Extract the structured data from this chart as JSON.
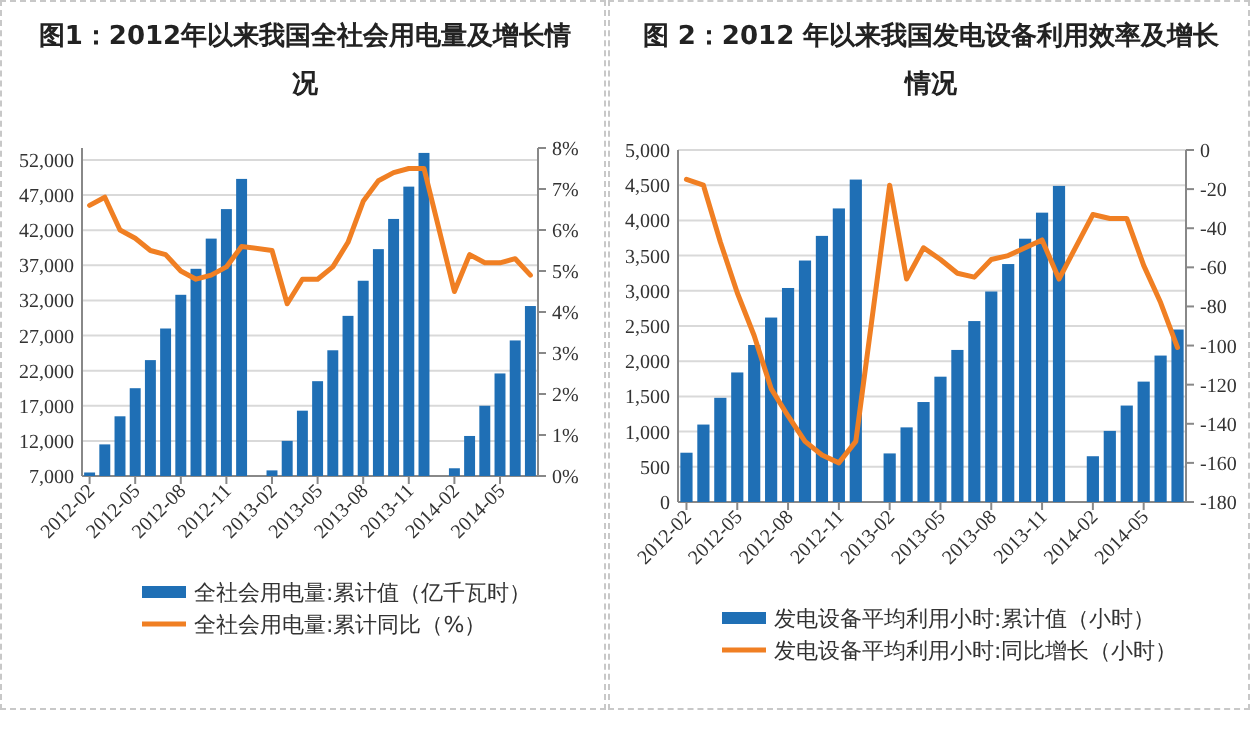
{
  "chart_data": [
    {
      "type": "bar",
      "title": "图1：2012年以来我国全社会用电量及增长情况",
      "categories": [
        "2012-02",
        null,
        null,
        "2012-05",
        null,
        null,
        "2012-08",
        null,
        null,
        "2012-11",
        null,
        null,
        "2013-02",
        null,
        null,
        "2013-05",
        null,
        null,
        "2013-08",
        null,
        null,
        "2013-11",
        null,
        null,
        "2014-02",
        null,
        null,
        "2014-05",
        null,
        null
      ],
      "series": [
        {
          "name": "全社会用电量:累计值（亿千瓦时）",
          "color": "#1f6fb5",
          "values": [
            7500,
            11500,
            15500,
            19500,
            23500,
            28000,
            32800,
            36500,
            40800,
            45000,
            49300,
            null,
            7800,
            12000,
            16300,
            20500,
            24900,
            29800,
            34800,
            39300,
            43600,
            48200,
            53000,
            null,
            8100,
            12700,
            17000,
            21600,
            26300,
            31200
          ]
        },
        {
          "name": "全社会用电量:累计同比（%）",
          "type": "line",
          "axis": "y2",
          "color": "#f07f23",
          "values": [
            6.6,
            6.8,
            6.0,
            5.8,
            5.5,
            5.4,
            5.0,
            4.8,
            4.9,
            5.1,
            5.6,
            null,
            5.5,
            4.2,
            4.8,
            4.8,
            5.1,
            5.7,
            6.7,
            7.2,
            7.4,
            7.5,
            7.5,
            null,
            4.5,
            5.4,
            5.2,
            5.2,
            5.3,
            4.9
          ]
        }
      ],
      "ylim": [
        7000,
        53700
      ],
      "yticks": [
        {
          "value": 7000,
          "label": "7,000"
        },
        {
          "value": 12000,
          "label": "12,000"
        },
        {
          "value": 17000,
          "label": "17,000"
        },
        {
          "value": 22000,
          "label": "22,000"
        },
        {
          "value": 27000,
          "label": "27,000"
        },
        {
          "value": 32000,
          "label": "32,000"
        },
        {
          "value": 37000,
          "label": "37,000"
        },
        {
          "value": 42000,
          "label": "42,000"
        },
        {
          "value": 47000,
          "label": "47,000"
        },
        {
          "value": 52000,
          "label": "52,000"
        }
      ],
      "y2lim": [
        0,
        8
      ],
      "y2ticks": [
        {
          "value": 0,
          "label": "0%"
        },
        {
          "value": 1,
          "label": "1%"
        },
        {
          "value": 2,
          "label": "2%"
        },
        {
          "value": 3,
          "label": "3%"
        },
        {
          "value": 4,
          "label": "4%"
        },
        {
          "value": 5,
          "label": "5%"
        },
        {
          "value": 6,
          "label": "6%"
        },
        {
          "value": 7,
          "label": "7%"
        },
        {
          "value": 8,
          "label": "8%"
        }
      ],
      "grid": "y",
      "legend": "bottom"
    },
    {
      "type": "bar",
      "title": "图 2：2012 年以来我国发电设备利用效率及增长情况",
      "categories": [
        "2012-02",
        null,
        null,
        "2012-05",
        null,
        null,
        "2012-08",
        null,
        null,
        "2012-11",
        null,
        null,
        "2013-02",
        null,
        null,
        "2013-05",
        null,
        null,
        "2013-08",
        null,
        null,
        "2013-11",
        null,
        null,
        "2014-02",
        null,
        null,
        "2014-05",
        null,
        null
      ],
      "series": [
        {
          "name": "发电设备平均利用小时:累计值（小时）",
          "color": "#1f6fb5",
          "values": [
            700,
            1100,
            1480,
            1840,
            2230,
            2620,
            3040,
            3430,
            3780,
            4170,
            4580,
            null,
            690,
            1060,
            1420,
            1780,
            2160,
            2570,
            2990,
            3380,
            3740,
            4110,
            4490,
            null,
            650,
            1010,
            1370,
            1710,
            2080,
            2450
          ]
        },
        {
          "name": "发电设备平均利用小时:同比增长（小时）",
          "type": "line",
          "axis": "y2",
          "color": "#f07f23",
          "values": [
            -15,
            -18,
            -47,
            -73,
            -95,
            -122,
            -136,
            -149,
            -156,
            -160,
            -149,
            null,
            -18,
            -66,
            -50,
            -56,
            -63,
            -65,
            -56,
            -54,
            -50,
            -46,
            -66,
            null,
            -33,
            -35,
            -35,
            -59,
            -78,
            -101
          ]
        }
      ],
      "ylim": [
        0,
        5000
      ],
      "yticks": [
        0,
        {
          "value": 500,
          "label": "500"
        },
        {
          "value": 1000,
          "label": "1,000"
        },
        {
          "value": 1500,
          "label": "1,500"
        },
        {
          "value": 2000,
          "label": "2,000"
        },
        {
          "value": 2500,
          "label": "2,500"
        },
        {
          "value": 3000,
          "label": "3,000"
        },
        {
          "value": 3500,
          "label": "3,500"
        },
        {
          "value": 4000,
          "label": "4,000"
        },
        {
          "value": 4500,
          "label": "4,500"
        },
        {
          "value": 5000,
          "label": "5,000"
        }
      ],
      "y2lim": [
        -180,
        0
      ],
      "y2ticks": [
        -180,
        -160,
        -140,
        -120,
        -100,
        -80,
        -60,
        -40,
        -20,
        0
      ],
      "grid": "y",
      "legend": "bottom"
    }
  ]
}
